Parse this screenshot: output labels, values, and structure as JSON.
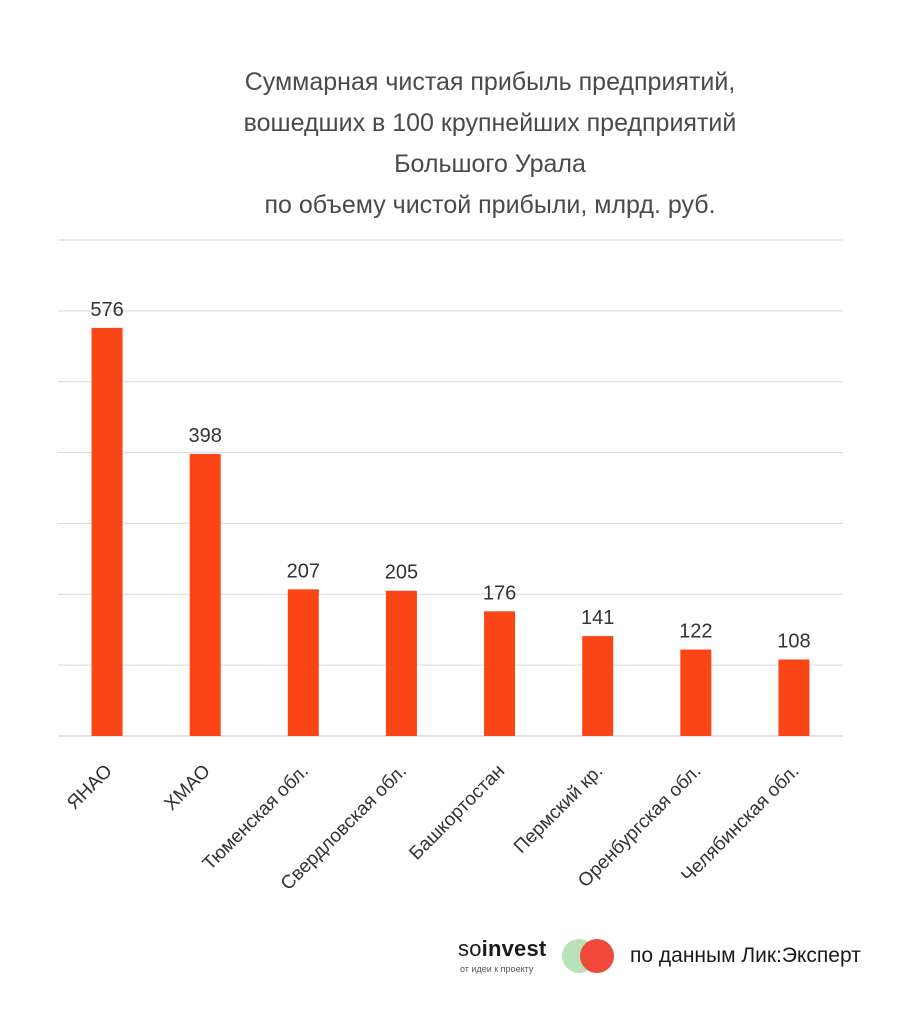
{
  "chart_data": {
    "type": "bar",
    "title_lines": [
      "Суммарная чистая прибыль предприятий,",
      "вошедших в 100 крупнейших предприятий",
      "Большого Урала",
      "по объему чистой прибыли, млрд. руб."
    ],
    "categories": [
      "ЯНАО",
      "ХМАО",
      "Тюменская обл.",
      "Свердловская обл.",
      "Башкортостан",
      "Пермский кр.",
      "Оренбургская обл.",
      "Челябинская обл."
    ],
    "values": [
      576,
      398,
      207,
      205,
      176,
      141,
      122,
      108
    ],
    "ylim": [
      0,
      700
    ],
    "grid": true,
    "bar_color": "#fa4616",
    "grid_color": "#d9d9d9"
  },
  "footer": {
    "logo_so": "so",
    "logo_invest": "invest",
    "logo_tagline": "от идеи к проекту",
    "source": "по данным Лик:Эксперт",
    "logo_colors": [
      "#b9e2b9",
      "#f0483a"
    ]
  }
}
